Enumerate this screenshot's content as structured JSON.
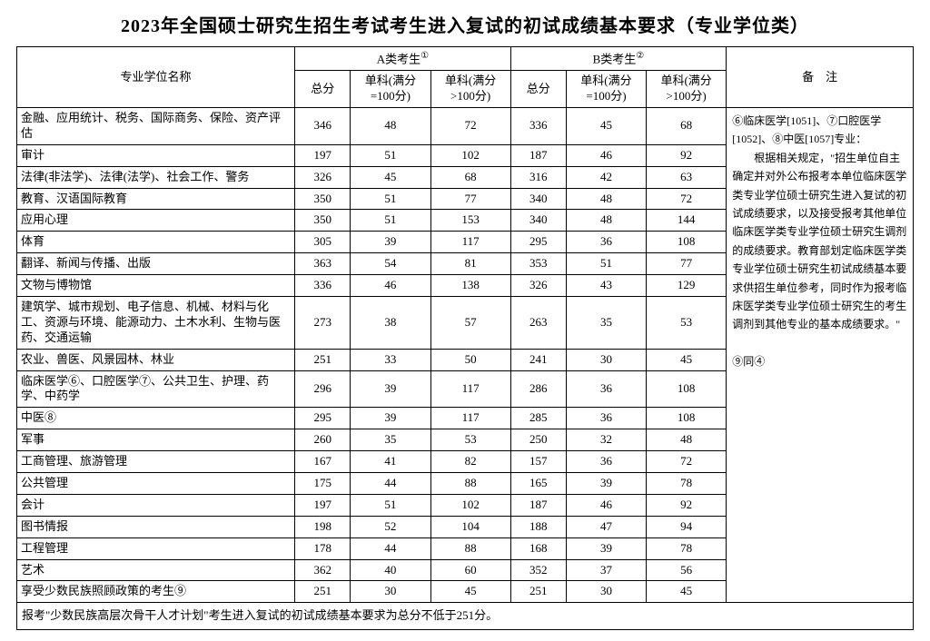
{
  "title": "2023年全国硕士研究生招生考试考生进入复试的初试成绩基本要求（专业学位类）",
  "headers": {
    "name": "专业学位名称",
    "catA": "A类考生",
    "catB": "B类考生",
    "notes": "备　注",
    "total": "总分",
    "sub100": "单科(满分=100分)",
    "subGt100": "单科(满分>100分)",
    "supA": "①",
    "supB": "②"
  },
  "rows": [
    {
      "name": "金融、应用统计、税务、国际商务、保险、资产评估",
      "a_total": "346",
      "a_s1": "48",
      "a_s2": "72",
      "b_total": "336",
      "b_s1": "45",
      "b_s2": "68"
    },
    {
      "name": "审计",
      "a_total": "197",
      "a_s1": "51",
      "a_s2": "102",
      "b_total": "187",
      "b_s1": "46",
      "b_s2": "92"
    },
    {
      "name": "法律(非法学)、法律(法学)、社会工作、警务",
      "a_total": "326",
      "a_s1": "45",
      "a_s2": "68",
      "b_total": "316",
      "b_s1": "42",
      "b_s2": "63"
    },
    {
      "name": "教育、汉语国际教育",
      "a_total": "350",
      "a_s1": "51",
      "a_s2": "77",
      "b_total": "340",
      "b_s1": "48",
      "b_s2": "72"
    },
    {
      "name": "应用心理",
      "a_total": "350",
      "a_s1": "51",
      "a_s2": "153",
      "b_total": "340",
      "b_s1": "48",
      "b_s2": "144"
    },
    {
      "name": "体育",
      "a_total": "305",
      "a_s1": "39",
      "a_s2": "117",
      "b_total": "295",
      "b_s1": "36",
      "b_s2": "108"
    },
    {
      "name": "翻译、新闻与传播、出版",
      "a_total": "363",
      "a_s1": "54",
      "a_s2": "81",
      "b_total": "353",
      "b_s1": "51",
      "b_s2": "77"
    },
    {
      "name": "文物与博物馆",
      "a_total": "336",
      "a_s1": "46",
      "a_s2": "138",
      "b_total": "326",
      "b_s1": "43",
      "b_s2": "129"
    },
    {
      "name": "建筑学、城市规划、电子信息、机械、材料与化工、资源与环境、能源动力、土木水利、生物与医药、交通运输",
      "a_total": "273",
      "a_s1": "38",
      "a_s2": "57",
      "b_total": "263",
      "b_s1": "35",
      "b_s2": "53"
    },
    {
      "name": "农业、兽医、风景园林、林业",
      "a_total": "251",
      "a_s1": "33",
      "a_s2": "50",
      "b_total": "241",
      "b_s1": "30",
      "b_s2": "45"
    },
    {
      "name": "临床医学⑥、口腔医学⑦、公共卫生、护理、药学、中药学",
      "a_total": "296",
      "a_s1": "39",
      "a_s2": "117",
      "b_total": "286",
      "b_s1": "36",
      "b_s2": "108"
    },
    {
      "name": "中医⑧",
      "a_total": "295",
      "a_s1": "39",
      "a_s2": "117",
      "b_total": "285",
      "b_s1": "36",
      "b_s2": "108"
    },
    {
      "name": "军事",
      "a_total": "260",
      "a_s1": "35",
      "a_s2": "53",
      "b_total": "250",
      "b_s1": "32",
      "b_s2": "48"
    },
    {
      "name": "工商管理、旅游管理",
      "a_total": "167",
      "a_s1": "41",
      "a_s2": "82",
      "b_total": "157",
      "b_s1": "36",
      "b_s2": "72"
    },
    {
      "name": "公共管理",
      "a_total": "175",
      "a_s1": "44",
      "a_s2": "88",
      "b_total": "165",
      "b_s1": "39",
      "b_s2": "78"
    },
    {
      "name": "会计",
      "a_total": "197",
      "a_s1": "51",
      "a_s2": "102",
      "b_total": "187",
      "b_s1": "46",
      "b_s2": "92"
    },
    {
      "name": "图书情报",
      "a_total": "198",
      "a_s1": "52",
      "a_s2": "104",
      "b_total": "188",
      "b_s1": "47",
      "b_s2": "94"
    },
    {
      "name": "工程管理",
      "a_total": "178",
      "a_s1": "44",
      "a_s2": "88",
      "b_total": "168",
      "b_s1": "39",
      "b_s2": "78"
    },
    {
      "name": "艺术",
      "a_total": "362",
      "a_s1": "40",
      "a_s2": "60",
      "b_total": "352",
      "b_s1": "37",
      "b_s2": "56"
    },
    {
      "name": "享受少数民族照顾政策的考生⑨",
      "a_total": "251",
      "a_s1": "30",
      "a_s2": "45",
      "b_total": "251",
      "b_s1": "30",
      "b_s2": "45"
    }
  ],
  "notes_text": "⑥临床医学[1051]、⑦口腔医学[1052]、⑧中医[1057]专业：\n　　根据相关规定，\"招生单位自主确定并对外公布报考本单位临床医学类专业学位硕士研究生进入复试的初试成绩要求，以及接受报考其他单位临床医学类专业学位硕士研究生调剂的成绩要求。教育部划定临床医学类专业学位硕士研究生初试成绩基本要求供招生单位参考，同时作为报考临床医学类专业学位硕士研究生的考生调剂到其他专业的基本成绩要求。\"\n\n⑨同④",
  "footnote": "报考\"少数民族高层次骨干人才计划\"考生进入复试的初试成绩基本要求为总分不低于251分。"
}
